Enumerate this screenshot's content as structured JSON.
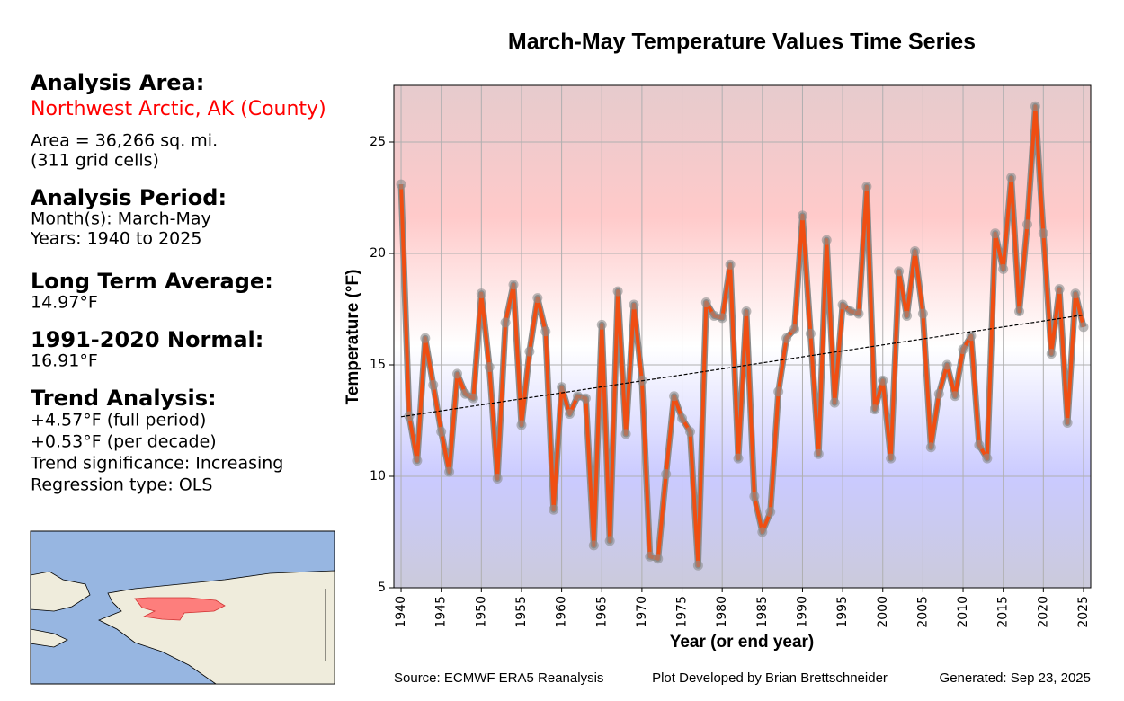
{
  "info_panel": {
    "area_heading": "Analysis Area:",
    "area_name": "Northwest Arctic, AK (County)",
    "area_lines": [
      "Area = 36,266 sq. mi.",
      "(311 grid cells)"
    ],
    "period_heading": "Analysis Period:",
    "period_lines": [
      "Month(s): March-May",
      "Years: 1940 to 2025"
    ],
    "average_heading": "Long Term Average:",
    "average_value": "14.97°F",
    "normal_heading": "1991-2020 Normal:",
    "normal_value": "16.91°F",
    "trend_heading": "Trend Analysis:",
    "trend_lines": [
      "+4.57°F (full period)",
      "+0.53°F (per decade)",
      "Trend significance: Increasing",
      "Regression type: OLS"
    ]
  },
  "chart_data": {
    "type": "line",
    "title": "March-May Temperature Values Time Series",
    "x_label": "Year (or end year)",
    "y_label": "Temperature (°F)",
    "x": [
      1940,
      1941,
      1942,
      1943,
      1944,
      1945,
      1946,
      1947,
      1948,
      1949,
      1950,
      1951,
      1952,
      1953,
      1954,
      1955,
      1956,
      1957,
      1958,
      1959,
      1960,
      1961,
      1962,
      1963,
      1964,
      1965,
      1966,
      1967,
      1968,
      1969,
      1970,
      1971,
      1972,
      1973,
      1974,
      1975,
      1976,
      1977,
      1978,
      1979,
      1980,
      1981,
      1982,
      1983,
      1984,
      1985,
      1986,
      1987,
      1988,
      1989,
      1990,
      1991,
      1992,
      1993,
      1994,
      1995,
      1996,
      1997,
      1998,
      1999,
      2000,
      2001,
      2002,
      2003,
      2004,
      2005,
      2006,
      2007,
      2008,
      2009,
      2010,
      2011,
      2012,
      2013,
      2014,
      2015,
      2016,
      2017,
      2018,
      2019,
      2020,
      2021,
      2022,
      2023,
      2024,
      2025
    ],
    "values": [
      23.1,
      12.7,
      10.7,
      16.2,
      14.1,
      12.0,
      10.2,
      14.6,
      13.7,
      13.5,
      18.2,
      14.9,
      9.9,
      16.9,
      18.6,
      12.3,
      15.6,
      18.0,
      16.5,
      8.5,
      14.0,
      12.8,
      13.6,
      13.5,
      6.9,
      16.8,
      7.1,
      18.3,
      11.9,
      17.7,
      14.3,
      6.4,
      6.3,
      10.1,
      13.6,
      12.6,
      12.0,
      6.0,
      17.8,
      17.2,
      17.1,
      19.5,
      10.8,
      17.4,
      9.1,
      7.5,
      8.4,
      13.8,
      16.2,
      16.6,
      21.7,
      16.4,
      11.0,
      20.6,
      13.3,
      17.7,
      17.4,
      17.3,
      23.0,
      13.0,
      14.3,
      10.8,
      19.2,
      17.2,
      20.1,
      17.3,
      11.3,
      13.7,
      15.0,
      13.6,
      15.7,
      16.3,
      11.4,
      10.8,
      20.9,
      19.3,
      23.4,
      17.4,
      21.3,
      26.6,
      20.9,
      15.5,
      18.4,
      12.4,
      18.2,
      16.7
    ],
    "line_color": "#f04e12",
    "edge_color": "#8c8c8c",
    "trend_line": {
      "x": [
        1940,
        2025
      ],
      "values": [
        12.67,
        17.24
      ],
      "color": "#000000"
    },
    "xlim": [
      1939.1,
      2025.9
    ],
    "ylim": [
      5,
      27.54
    ],
    "xticks": [
      1940,
      1945,
      1950,
      1955,
      1960,
      1965,
      1970,
      1975,
      1980,
      1985,
      1990,
      1995,
      2000,
      2005,
      2010,
      2015,
      2020,
      2025
    ],
    "yticks": [
      5,
      10,
      15,
      20,
      25
    ],
    "grid": true
  },
  "footer": {
    "source": "Source: ECMWF ERA5 Reanalysis",
    "developer": "Plot Developed by Brian Brettschneider",
    "generated": "Generated: Sep 23, 2025"
  }
}
